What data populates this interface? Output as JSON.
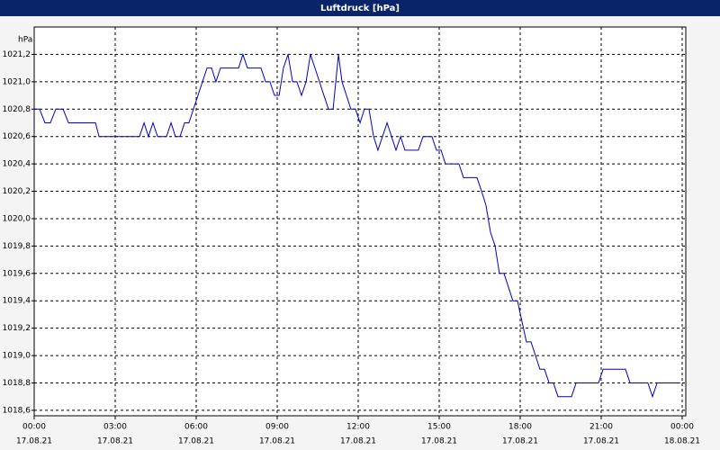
{
  "chart_data": {
    "type": "line",
    "title": "Luftdruck [hPa]",
    "ylabel": "hPa",
    "xlim": [
      0,
      24
    ],
    "ylim": [
      1018.56,
      1021.4
    ],
    "xticks": [
      {
        "value": 0,
        "label": "00:00"
      },
      {
        "value": 3,
        "label": "03:00"
      },
      {
        "value": 6,
        "label": "06:00"
      },
      {
        "value": 9,
        "label": "09:00"
      },
      {
        "value": 12,
        "label": "12:00"
      },
      {
        "value": 15,
        "label": "15:00"
      },
      {
        "value": 18,
        "label": "18:00"
      },
      {
        "value": 21,
        "label": "21:00"
      },
      {
        "value": 24,
        "label": "00:00"
      }
    ],
    "xtick_dates": [
      "17.08.21",
      "17.08.21",
      "17.08.21",
      "17.08.21",
      "17.08.21",
      "17.08.21",
      "17.08.21",
      "17.08.21",
      "18.08.21"
    ],
    "yticks": [
      {
        "value": 1018.6,
        "label": "1018,6"
      },
      {
        "value": 1018.8,
        "label": "1018,8"
      },
      {
        "value": 1019.0,
        "label": "1019,0"
      },
      {
        "value": 1019.2,
        "label": "1019,2"
      },
      {
        "value": 1019.4,
        "label": "1019,4"
      },
      {
        "value": 1019.6,
        "label": "1019,6"
      },
      {
        "value": 1019.8,
        "label": "1019,8"
      },
      {
        "value": 1020.0,
        "label": "1020,0"
      },
      {
        "value": 1020.2,
        "label": "1020,2"
      },
      {
        "value": 1020.4,
        "label": "1020,4"
      },
      {
        "value": 1020.6,
        "label": "1020,6"
      },
      {
        "value": 1020.8,
        "label": "1020,8"
      },
      {
        "value": 1021.0,
        "label": "1021,0"
      },
      {
        "value": 1021.2,
        "label": "1021,2"
      }
    ],
    "grid": true,
    "series": [
      {
        "color": "#0000c0",
        "x": [
          0,
          0.2,
          0.4,
          0.6,
          0.8,
          1.07,
          1.27,
          2.27,
          2.4,
          3.9,
          4.07,
          4.23,
          4.4,
          4.57,
          4.9,
          5.07,
          5.23,
          5.4,
          5.57,
          5.73,
          6.4,
          6.57,
          6.73,
          6.9,
          7.57,
          7.73,
          7.9,
          8.4,
          8.57,
          8.73,
          8.9,
          9.07,
          9.23,
          9.4,
          9.57,
          9.73,
          9.9,
          10.07,
          10.23,
          10.4,
          10.73,
          10.9,
          11.07,
          11.27,
          11.4,
          11.73,
          11.9,
          12.07,
          12.23,
          12.4,
          12.57,
          12.73,
          13.07,
          13.4,
          13.57,
          13.73,
          14.23,
          14.4,
          14.73,
          14.9,
          15.07,
          15.23,
          15.73,
          15.9,
          16.4,
          16.57,
          16.73,
          16.9,
          17.07,
          17.23,
          17.4,
          17.73,
          17.9,
          18.23,
          18.4,
          18.73,
          18.9,
          19.07,
          19.23,
          19.4,
          19.9,
          20.07,
          20.9,
          21.07,
          21.9,
          22.07,
          22.73,
          22.9,
          23.07,
          23.93
        ],
        "values": [
          1020.8,
          1020.8,
          1020.7,
          1020.7,
          1020.8,
          1020.8,
          1020.7,
          1020.7,
          1020.6,
          1020.6,
          1020.7,
          1020.6,
          1020.7,
          1020.6,
          1020.6,
          1020.7,
          1020.6,
          1020.6,
          1020.7,
          1020.7,
          1021.1,
          1021.1,
          1021.0,
          1021.1,
          1021.1,
          1021.2,
          1021.1,
          1021.1,
          1021.0,
          1021.0,
          1020.9,
          1020.9,
          1021.1,
          1021.2,
          1021.0,
          1021.0,
          1020.9,
          1021.0,
          1021.2,
          1021.1,
          1020.9,
          1020.8,
          1020.8,
          1021.2,
          1021.0,
          1020.8,
          1020.8,
          1020.7,
          1020.8,
          1020.8,
          1020.6,
          1020.5,
          1020.7,
          1020.5,
          1020.6,
          1020.5,
          1020.5,
          1020.6,
          1020.6,
          1020.5,
          1020.5,
          1020.4,
          1020.4,
          1020.3,
          1020.3,
          1020.2,
          1020.1,
          1019.9,
          1019.8,
          1019.6,
          1019.6,
          1019.4,
          1019.4,
          1019.1,
          1019.1,
          1018.9,
          1018.9,
          1018.8,
          1018.8,
          1018.7,
          1018.7,
          1018.8,
          1018.8,
          1018.9,
          1018.9,
          1018.8,
          1018.8,
          1018.7,
          1018.8,
          1018.8
        ]
      }
    ]
  }
}
